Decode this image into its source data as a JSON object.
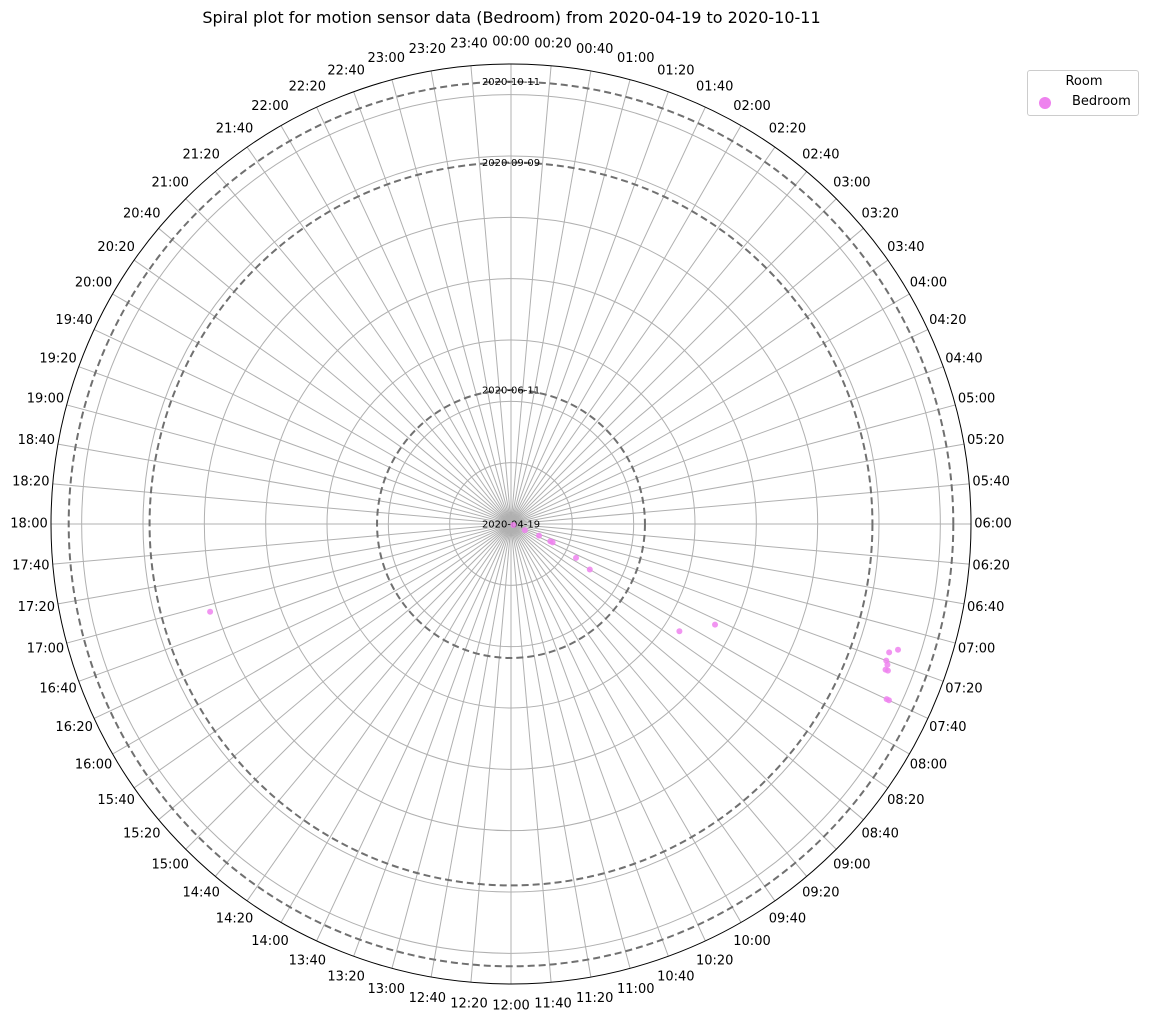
{
  "title": "Spiral plot for motion sensor data (Bedroom) from 2020-04-19 to 2020-10-11",
  "legend": {
    "title": "Room",
    "entries": [
      {
        "label": "Bedroom",
        "color": "#ee82ee"
      }
    ]
  },
  "colors": {
    "dashed_ring": "#707070",
    "grid": "#b0b0b0",
    "frame": "#000000",
    "point": "#ee82ee"
  },
  "chart_data": {
    "type": "scatter",
    "projection": "polar-spiral",
    "title": "Spiral plot for motion sensor data (Bedroom) from 2020-04-19 to 2020-10-11",
    "angular_axis": {
      "direction": "clockwise",
      "zero_at": "top",
      "tick_labels": [
        "00:00",
        "00:20",
        "00:40",
        "01:00",
        "01:20",
        "01:40",
        "02:00",
        "02:20",
        "02:40",
        "03:00",
        "03:20",
        "03:40",
        "04:00",
        "04:20",
        "04:40",
        "05:00",
        "05:20",
        "05:40",
        "06:00",
        "06:20",
        "06:40",
        "07:00",
        "07:20",
        "07:40",
        "08:00",
        "08:20",
        "08:40",
        "09:00",
        "09:20",
        "09:40",
        "10:00",
        "10:20",
        "10:40",
        "11:00",
        "11:20",
        "11:40",
        "12:00",
        "12:20",
        "12:40",
        "13:00",
        "13:20",
        "13:40",
        "14:00",
        "14:20",
        "14:40",
        "15:00",
        "15:20",
        "15:40",
        "16:00",
        "16:20",
        "16:40",
        "17:00",
        "17:20",
        "17:40",
        "18:00",
        "18:20",
        "18:40",
        "19:00",
        "19:20",
        "19:40",
        "20:00",
        "20:20",
        "20:40",
        "21:00",
        "21:20",
        "21:40",
        "22:00",
        "22:20",
        "22:40",
        "23:00",
        "23:20",
        "23:40"
      ]
    },
    "radial_axis": {
      "start_date": "2020-04-19",
      "end_date": "2020-10-11",
      "ylim": [
        "2020-04-19",
        "2020-10-18"
      ],
      "grid_rings": 7
    },
    "date_rings": [
      {
        "label": "2020-04-19",
        "date": "2020-04-19"
      },
      {
        "label": "2020-06-11",
        "date": "2020-06-11"
      },
      {
        "label": "2020-09-09",
        "date": "2020-09-09"
      },
      {
        "label": "2020-10-11",
        "date": "2020-10-11"
      }
    ],
    "grid": true,
    "legend_position": "outside top-right",
    "series": [
      {
        "name": "Bedroom",
        "color": "#ee82ee",
        "points": [
          {
            "time": "07:30",
            "date": "2020-04-20"
          },
          {
            "time": "07:35",
            "date": "2020-04-25"
          },
          {
            "time": "07:30",
            "date": "2020-05-01"
          },
          {
            "time": "07:35",
            "date": "2020-05-06"
          },
          {
            "time": "07:35",
            "date": "2020-05-07"
          },
          {
            "time": "07:50",
            "date": "2020-05-18"
          },
          {
            "time": "08:00",
            "date": "2020-05-25"
          },
          {
            "time": "08:10",
            "date": "2020-07-07"
          },
          {
            "time": "07:45",
            "date": "2020-07-18"
          },
          {
            "time": "07:20",
            "date": "2020-09-24"
          },
          {
            "time": "07:15",
            "date": "2020-09-24"
          },
          {
            "time": "07:22",
            "date": "2020-09-25"
          },
          {
            "time": "07:25",
            "date": "2020-09-25"
          },
          {
            "time": "07:25",
            "date": "2020-09-26"
          },
          {
            "time": "07:12",
            "date": "2020-09-27"
          },
          {
            "time": "07:40",
            "date": "2020-09-30"
          },
          {
            "time": "07:40",
            "date": "2020-10-01"
          },
          {
            "time": "16:55",
            "date": "2020-08-21"
          }
        ]
      }
    ]
  }
}
